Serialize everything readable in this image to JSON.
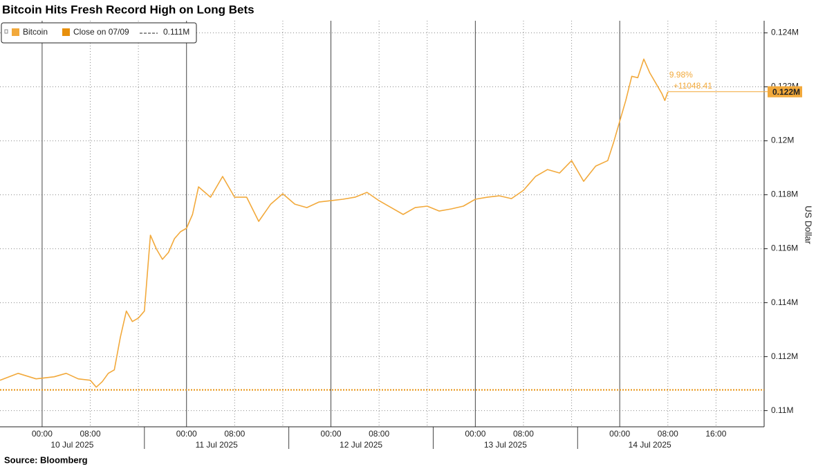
{
  "chart_data": {
    "type": "line",
    "title": "Bitcoin Hits Fresh Record High on Long Bets",
    "source": "Source: Bloomberg",
    "y_label": "US Dollar",
    "x": [
      "2025-07-09 17:00",
      "2025-07-09 20:00",
      "2025-07-09 23:00",
      "2025-07-10 02:00",
      "2025-07-10 04:00",
      "2025-07-10 06:00",
      "2025-07-10 08:00",
      "2025-07-10 09:00",
      "2025-07-10 10:00",
      "2025-07-10 11:00",
      "2025-07-10 12:00",
      "2025-07-10 13:00",
      "2025-07-10 14:00",
      "2025-07-10 15:00",
      "2025-07-10 16:00",
      "2025-07-10 17:00",
      "2025-07-10 18:00",
      "2025-07-10 19:00",
      "2025-07-10 20:00",
      "2025-07-10 21:00",
      "2025-07-10 22:00",
      "2025-07-10 23:00",
      "2025-07-11 00:00",
      "2025-07-11 01:00",
      "2025-07-11 02:00",
      "2025-07-11 04:00",
      "2025-07-11 06:00",
      "2025-07-11 08:00",
      "2025-07-11 10:00",
      "2025-07-11 12:00",
      "2025-07-11 14:00",
      "2025-07-11 16:00",
      "2025-07-11 18:00",
      "2025-07-11 20:00",
      "2025-07-11 22:00",
      "2025-07-12 00:00",
      "2025-07-12 02:00",
      "2025-07-12 04:00",
      "2025-07-12 06:00",
      "2025-07-12 08:00",
      "2025-07-12 10:00",
      "2025-07-12 12:00",
      "2025-07-12 14:00",
      "2025-07-12 16:00",
      "2025-07-12 18:00",
      "2025-07-12 20:00",
      "2025-07-12 22:00",
      "2025-07-13 00:00",
      "2025-07-13 02:00",
      "2025-07-13 04:00",
      "2025-07-13 06:00",
      "2025-07-13 08:00",
      "2025-07-13 10:00",
      "2025-07-13 12:00",
      "2025-07-13 14:00",
      "2025-07-13 16:00",
      "2025-07-13 18:00",
      "2025-07-13 20:00",
      "2025-07-13 22:00",
      "2025-07-13 23:00",
      "2025-07-14 00:00",
      "2025-07-14 01:00",
      "2025-07-14 02:00",
      "2025-07-14 03:00",
      "2025-07-14 04:00",
      "2025-07-14 05:00",
      "2025-07-14 06:00",
      "2025-07-14 07:00",
      "2025-07-14 07:30",
      "2025-07-14 08:00"
    ],
    "series": [
      {
        "name": "Bitcoin",
        "color": "#f2a93b",
        "values": [
          111126,
          111382,
          111178,
          111254,
          111382,
          111178,
          111126,
          110870,
          111075,
          111382,
          111510,
          112714,
          113690,
          113302,
          113430,
          113690,
          116502,
          115990,
          115606,
          115862,
          116374,
          116630,
          116758,
          117270,
          118294,
          117910,
          118678,
          117910,
          117910,
          117014,
          117654,
          118038,
          117654,
          117526,
          117731,
          117782,
          117834,
          117910,
          118090,
          117782,
          117526,
          117270,
          117526,
          117578,
          117398,
          117475,
          117578,
          117834,
          117910,
          117962,
          117859,
          118166,
          118678,
          118934,
          118806,
          119267,
          118499,
          119062,
          119267,
          119958,
          120726,
          121494,
          122390,
          122339,
          123030,
          122518,
          122134,
          121750,
          121494,
          121818
        ]
      }
    ],
    "close": {
      "name": "Close on 07/09",
      "value": 110770,
      "value_label": "0.111M",
      "color": "#e8900c"
    },
    "last_label": "0.122M",
    "annotations": [
      "9.98%",
      "+11048.41"
    ],
    "xlim": [
      "2025-07-09 17:00",
      "2025-07-15 00:00"
    ],
    "ylim": [
      109400,
      124450
    ],
    "yticks": [
      {
        "value": 110000,
        "label": "0.11M"
      },
      {
        "value": 112000,
        "label": "0.112M"
      },
      {
        "value": 114000,
        "label": "0.114M"
      },
      {
        "value": 116000,
        "label": "0.116M"
      },
      {
        "value": 118000,
        "label": "0.118M"
      },
      {
        "value": 120000,
        "label": "0.12M"
      },
      {
        "value": 122000,
        "label": "0.122M"
      },
      {
        "value": 124000,
        "label": "0.124M"
      }
    ],
    "xticks": [
      {
        "value": "2025-07-10 00:00",
        "label": "00:00"
      },
      {
        "value": "2025-07-10 08:00",
        "label": "08:00"
      },
      {
        "value": "2025-07-10 16:00",
        "label": null
      },
      {
        "value": "2025-07-11 00:00",
        "label": "00:00"
      },
      {
        "value": "2025-07-11 08:00",
        "label": "08:00"
      },
      {
        "value": "2025-07-11 16:00",
        "label": null
      },
      {
        "value": "2025-07-12 00:00",
        "label": "00:00"
      },
      {
        "value": "2025-07-12 08:00",
        "label": "08:00"
      },
      {
        "value": "2025-07-12 16:00",
        "label": null
      },
      {
        "value": "2025-07-13 00:00",
        "label": "00:00"
      },
      {
        "value": "2025-07-13 08:00",
        "label": "08:00"
      },
      {
        "value": "2025-07-13 16:00",
        "label": null
      },
      {
        "value": "2025-07-14 00:00",
        "label": "00:00"
      },
      {
        "value": "2025-07-14 08:00",
        "label": "08:00"
      },
      {
        "value": "2025-07-14 16:00",
        "label": "16:00"
      }
    ],
    "xgroups": [
      {
        "label": "10 Jul 2025",
        "start": "2025-07-09 17:00",
        "end": "2025-07-10 17:00"
      },
      {
        "label": "11 Jul 2025",
        "start": "2025-07-10 17:00",
        "end": "2025-07-11 17:00"
      },
      {
        "label": "12 Jul 2025",
        "start": "2025-07-11 17:00",
        "end": "2025-07-12 17:00"
      },
      {
        "label": "13 Jul 2025",
        "start": "2025-07-12 17:00",
        "end": "2025-07-13 17:00"
      },
      {
        "label": "14 Jul 2025",
        "start": "2025-07-13 17:00",
        "end": "2025-07-14 17:00"
      }
    ],
    "grid": true
  }
}
